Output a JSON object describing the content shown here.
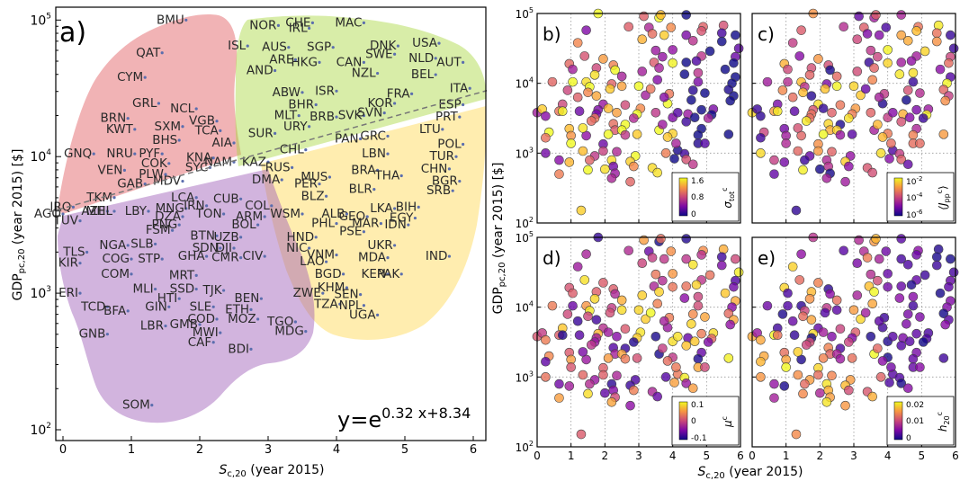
{
  "chart_data": [
    {
      "panel": "a)",
      "type": "scatter",
      "xlabel_main": "S",
      "xlabel_sub": "c,20",
      "xlabel_suffix": " (year 2015)",
      "ylabel_main": "GDP",
      "ylabel_sub": "pc,20",
      "ylabel_suffix": " (year 2015) [$]",
      "xlim": [
        -0.2,
        6.2
      ],
      "ylim_log10": [
        1.88,
        5.1
      ],
      "y_scale": "log",
      "xticks": [
        "0",
        "1",
        "2",
        "3",
        "4",
        "5",
        "6"
      ],
      "yticks_exp": [
        "2",
        "3",
        "4",
        "5"
      ],
      "grid": false,
      "fit": {
        "label_base": "y=e",
        "label_exp": "0.32 x+8.34",
        "slope": 0.32,
        "intercept": 8.34,
        "style": "dashed"
      },
      "clusters": [
        {
          "name": "red",
          "color": "#e0575a"
        },
        {
          "name": "green",
          "color": "#a8d63f"
        },
        {
          "name": "yellow",
          "color": "#ffd84d"
        },
        {
          "name": "purple",
          "color": "#9b59b6"
        }
      ],
      "points": [
        [
          "BMU",
          1.8,
          5.0
        ],
        [
          "QAT",
          1.45,
          4.76
        ],
        [
          "CYM",
          1.2,
          4.58
        ],
        [
          "GRL",
          1.4,
          4.39
        ],
        [
          "BRN",
          0.95,
          4.28
        ],
        [
          "NCL",
          1.95,
          4.35
        ],
        [
          "KWT",
          1.05,
          4.2
        ],
        [
          "SXM",
          1.75,
          4.22
        ],
        [
          "VGB",
          2.25,
          4.26
        ],
        [
          "TCA",
          2.3,
          4.19
        ],
        [
          "BHS",
          1.7,
          4.12
        ],
        [
          "AIA",
          2.5,
          4.1
        ],
        [
          "NRU",
          1.05,
          4.02
        ],
        [
          "PYF",
          1.45,
          4.02
        ],
        [
          "GNQ",
          0.45,
          4.02
        ],
        [
          "COK",
          1.55,
          3.95
        ],
        [
          "KNA",
          2.2,
          3.99
        ],
        [
          "NAM",
          2.5,
          3.96
        ],
        [
          "VEN",
          0.9,
          3.9
        ],
        [
          "SYC",
          2.15,
          3.92
        ],
        [
          "PLW",
          1.5,
          3.87
        ],
        [
          "MDV",
          1.75,
          3.82
        ],
        [
          "GAB",
          1.2,
          3.8
        ],
        [
          "LCA",
          1.95,
          3.7
        ],
        [
          "TKM",
          0.75,
          3.7
        ],
        [
          "AZE",
          0.65,
          3.6
        ],
        [
          "LBY",
          1.25,
          3.6
        ],
        [
          "AGO",
          0.0,
          3.58
        ],
        [
          "NOR",
          3.15,
          4.96
        ],
        [
          "IRL",
          3.6,
          4.94
        ],
        [
          "CHE",
          3.65,
          4.98
        ],
        [
          "MAC",
          4.4,
          4.98
        ],
        [
          "ISL",
          2.7,
          4.81
        ],
        [
          "AUS",
          3.3,
          4.8
        ],
        [
          "SGP",
          3.95,
          4.8
        ],
        [
          "DNK",
          4.9,
          4.81
        ],
        [
          "USA",
          5.5,
          4.83
        ],
        [
          "ARE",
          3.4,
          4.71
        ],
        [
          "HKG",
          3.75,
          4.69
        ],
        [
          "CAN",
          4.4,
          4.69
        ],
        [
          "SWE",
          4.85,
          4.75
        ],
        [
          "NLD",
          5.45,
          4.72
        ],
        [
          "AUT",
          5.85,
          4.69
        ],
        [
          "AND",
          3.1,
          4.63
        ],
        [
          "NZL",
          4.6,
          4.61
        ],
        [
          "BEL",
          5.45,
          4.6
        ],
        [
          "ITA",
          5.95,
          4.5
        ],
        [
          "ABW",
          3.5,
          4.47
        ],
        [
          "ISR",
          4.0,
          4.48
        ],
        [
          "FRA",
          5.1,
          4.46
        ],
        [
          "BHR",
          3.7,
          4.38
        ],
        [
          "KOR",
          4.85,
          4.39
        ],
        [
          "ESP",
          5.85,
          4.38
        ],
        [
          "MLT",
          3.45,
          4.3
        ],
        [
          "BRB",
          4.0,
          4.29
        ],
        [
          "SVN",
          4.7,
          4.32
        ],
        [
          "SVK",
          4.4,
          4.3
        ],
        [
          "PRT",
          5.8,
          4.29
        ],
        [
          "URY",
          3.6,
          4.22
        ],
        [
          "SUR",
          3.1,
          4.17
        ],
        [
          "LTU",
          5.55,
          4.2
        ],
        [
          "GRC",
          4.75,
          4.15
        ],
        [
          "PAN",
          4.35,
          4.13
        ],
        [
          "POL",
          5.85,
          4.09
        ],
        [
          "CHL",
          3.55,
          4.05
        ],
        [
          "LBN",
          4.75,
          4.02
        ],
        [
          "TUR",
          5.75,
          4.0
        ],
        [
          "BRA",
          4.6,
          3.9
        ],
        [
          "THA",
          4.95,
          3.86
        ],
        [
          "CHN",
          5.65,
          3.91
        ],
        [
          "MUS",
          3.9,
          3.85
        ],
        [
          "BGR",
          5.8,
          3.82
        ],
        [
          "BLR",
          4.55,
          3.76
        ],
        [
          "SRB",
          5.7,
          3.75
        ],
        [
          "BIH",
          5.2,
          3.63
        ],
        [
          "LKA",
          4.85,
          3.62
        ],
        [
          "GEO",
          4.45,
          3.56
        ],
        [
          "EGY",
          5.15,
          3.55
        ],
        [
          "MAR",
          4.65,
          3.51
        ],
        [
          "IDN",
          5.05,
          3.5
        ],
        [
          "PSE",
          4.4,
          3.45
        ],
        [
          "UKR",
          4.85,
          3.35
        ],
        [
          "MDA",
          4.75,
          3.26
        ],
        [
          "IND",
          5.65,
          3.27
        ],
        [
          "KEN",
          4.75,
          3.14
        ],
        [
          "PAK",
          4.95,
          3.14
        ],
        [
          "KHM",
          4.15,
          3.04
        ],
        [
          "SEN",
          4.35,
          2.99
        ],
        [
          "NPL",
          4.4,
          2.91
        ],
        [
          "UGA",
          4.6,
          2.84
        ],
        [
          "TZA",
          4.05,
          2.92
        ],
        [
          "ZWE",
          3.8,
          3.0
        ],
        [
          "BGD",
          4.1,
          3.14
        ],
        [
          "VNM",
          4.0,
          3.28
        ],
        [
          "LAO",
          3.85,
          3.23
        ],
        [
          "NIC",
          3.6,
          3.33
        ],
        [
          "HND",
          3.7,
          3.41
        ],
        [
          "PHL",
          4.0,
          3.51
        ],
        [
          "ALB",
          4.15,
          3.58
        ],
        [
          "WSM",
          3.5,
          3.58
        ],
        [
          "BLZ",
          3.85,
          3.71
        ],
        [
          "PER",
          3.75,
          3.8
        ],
        [
          "DMA",
          3.2,
          3.83
        ],
        [
          "RUS",
          3.35,
          3.92
        ],
        [
          "KAZ",
          3.0,
          3.96
        ],
        [
          "CUB",
          2.6,
          3.69
        ],
        [
          "COL",
          3.05,
          3.64
        ],
        [
          "IRN",
          2.1,
          3.64
        ],
        [
          "ARM",
          2.95,
          3.56
        ],
        [
          "BOL",
          2.85,
          3.5
        ],
        [
          "TON",
          2.35,
          3.58
        ],
        [
          "MNG",
          1.8,
          3.62
        ],
        [
          "DZA",
          1.75,
          3.56
        ],
        [
          "PNG",
          1.7,
          3.5
        ],
        [
          "FSM",
          1.6,
          3.46
        ],
        [
          "BTN",
          2.25,
          3.42
        ],
        [
          "UZB",
          2.6,
          3.41
        ],
        [
          "SDN",
          2.3,
          3.33
        ],
        [
          "DJI",
          2.5,
          3.33
        ],
        [
          "CMR",
          2.6,
          3.26
        ],
        [
          "CIV",
          2.95,
          3.27
        ],
        [
          "GHA",
          2.1,
          3.27
        ],
        [
          "STP",
          1.45,
          3.25
        ],
        [
          "MRT",
          1.95,
          3.13
        ],
        [
          "MLI",
          1.35,
          3.03
        ],
        [
          "SSD",
          1.95,
          3.03
        ],
        [
          "TJK",
          2.35,
          3.02
        ],
        [
          "BEN",
          2.9,
          2.96
        ],
        [
          "HTI",
          1.7,
          2.96
        ],
        [
          "GIN",
          1.55,
          2.9
        ],
        [
          "SLE",
          2.2,
          2.9
        ],
        [
          "ETH",
          2.75,
          2.88
        ],
        [
          "COD",
          2.25,
          2.81
        ],
        [
          "MOZ",
          2.85,
          2.81
        ],
        [
          "GMB",
          2.0,
          2.77
        ],
        [
          "MWI",
          2.3,
          2.71
        ],
        [
          "TGO",
          3.4,
          2.79
        ],
        [
          "MDG",
          3.55,
          2.72
        ],
        [
          "CAF",
          2.2,
          2.64
        ],
        [
          "BDI",
          2.75,
          2.59
        ],
        [
          "SOM",
          1.3,
          2.18
        ],
        [
          "IRQ",
          0.15,
          3.63
        ],
        [
          "MHL",
          0.75,
          3.6
        ],
        [
          "TUV",
          0.25,
          3.53
        ],
        [
          "NGA",
          0.95,
          3.35
        ],
        [
          "SLB",
          1.35,
          3.36
        ],
        [
          "TLS",
          0.35,
          3.3
        ],
        [
          "COG",
          1.0,
          3.25
        ],
        [
          "KIR",
          0.25,
          3.22
        ],
        [
          "COM",
          1.0,
          3.14
        ],
        [
          "ERI",
          0.25,
          3.0
        ],
        [
          "TCD",
          0.65,
          2.9
        ],
        [
          "BFA",
          0.95,
          2.87
        ],
        [
          "GNB",
          0.65,
          2.7
        ],
        [
          "LBR",
          1.5,
          2.76
        ]
      ]
    },
    {
      "panel": "b)",
      "type": "scatter",
      "colorbar_label_main": "σ",
      "colorbar_label_sup": "c",
      "colorbar_label_sub": "tot",
      "colorbar_ticks": [
        "1.6",
        "0.8",
        "0"
      ],
      "cmap_range": [
        0,
        1.6
      ]
    },
    {
      "panel": "c)",
      "type": "scatter",
      "colorbar_label_main": "⟨J",
      "colorbar_label_sup": "c",
      "colorbar_label_sub": "pp",
      "colorbar_label_close": "⟩",
      "colorbar_ticks_exp": [
        "-2",
        "-4",
        "-6"
      ],
      "cmap_range_log10": [
        -6,
        -2
      ]
    },
    {
      "panel": "d)",
      "type": "scatter",
      "colorbar_label_main": "μ",
      "colorbar_label_sup": "c",
      "colorbar_ticks": [
        "0.1",
        "0",
        "-0.1"
      ],
      "cmap_range": [
        -0.1,
        0.1
      ]
    },
    {
      "panel": "e)",
      "type": "scatter",
      "colorbar_label_main": "h",
      "colorbar_label_sup": "c",
      "colorbar_label_sub": "20",
      "colorbar_ticks": [
        "0.02",
        "0.01",
        "0"
      ],
      "cmap_range": [
        0,
        0.02
      ]
    }
  ],
  "small_axes": {
    "xlabel_main": "S",
    "xlabel_sub": "c,20",
    "xlabel_suffix": " (year 2015)",
    "ylabel_main": "GDP",
    "ylabel_sub": "pc,20",
    "ylabel_suffix": " (year 2015) [$]",
    "xticks": [
      "0",
      "1",
      "2",
      "3",
      "4",
      "5",
      "6"
    ],
    "xlim": [
      0,
      6
    ],
    "ylim_log10": [
      2,
      5
    ],
    "yticks_exp": [
      "2",
      "3",
      "4",
      "5"
    ],
    "tick_base": "10",
    "grid": true,
    "colormap": "plasma"
  }
}
